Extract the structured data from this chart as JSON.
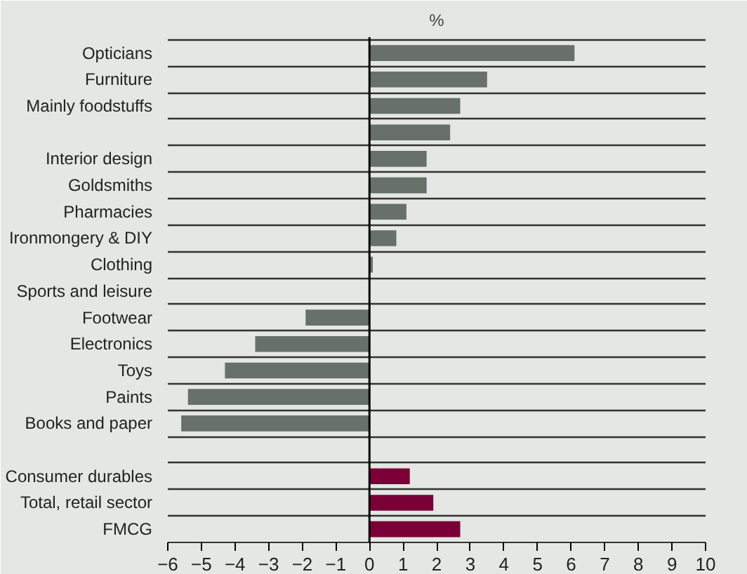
{
  "chart_data": {
    "type": "bar",
    "orientation": "horizontal",
    "title": "%",
    "categories": [
      "Opticians",
      "Furniture",
      "Mainly foodstuffs",
      null,
      "Interior design",
      "Goldsmiths",
      "Pharmacies",
      "Ironmongery & DIY",
      "Clothing",
      "Sports and leisure",
      "Footwear",
      "Electronics",
      "Toys",
      "Paints",
      "Books and paper",
      null,
      "Consumer durables",
      "Total, retail sector",
      "FMCG"
    ],
    "values": [
      6.1,
      3.5,
      2.7,
      2.4,
      1.7,
      1.7,
      1.1,
      0.8,
      0.1,
      0,
      -1.9,
      -3.4,
      -4.3,
      -5.4,
      -5.6,
      null,
      1.2,
      1.9,
      2.7
    ],
    "colors": [
      "#67716a",
      "#67716a",
      "#67716a",
      "#67716a",
      "#67716a",
      "#67716a",
      "#67716a",
      "#67716a",
      "#67716a",
      "#67716a",
      "#67716a",
      "#67716a",
      "#67716a",
      "#67716a",
      "#67716a",
      "#67716a",
      "#7a0037",
      "#7a0037",
      "#7a0037"
    ],
    "xlim": [
      -6,
      10
    ],
    "xticks": [
      -6,
      -5,
      -4,
      -3,
      -2,
      -1,
      0,
      1,
      2,
      3,
      4,
      5,
      6,
      7,
      8,
      9,
      10
    ],
    "grid": "y"
  }
}
